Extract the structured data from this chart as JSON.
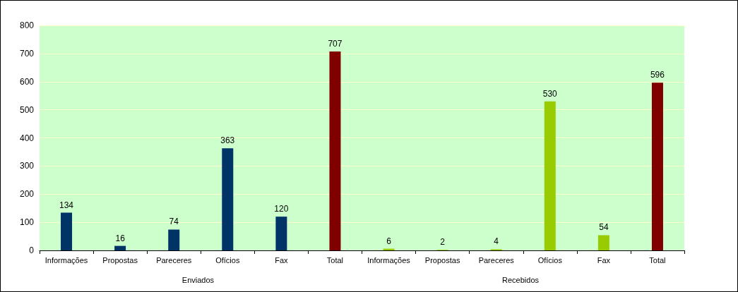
{
  "chart_data": {
    "type": "bar",
    "categories": [
      "Informações",
      "Propostas",
      "Pareceres",
      "Ofícios",
      "Fax",
      "Total",
      "Informações",
      "Propostas",
      "Pareceres",
      "Ofícios",
      "Fax",
      "Total"
    ],
    "values": [
      134,
      16,
      74,
      363,
      120,
      707,
      6,
      2,
      4,
      530,
      54,
      596
    ],
    "colors": [
      "#003366",
      "#003366",
      "#003366",
      "#003366",
      "#003366",
      "#800000",
      "#99cc00",
      "#99cc00",
      "#99cc00",
      "#99cc00",
      "#99cc00",
      "#800000"
    ],
    "ylim": [
      0,
      800
    ],
    "yticks": [
      0,
      100,
      200,
      300,
      400,
      500,
      600,
      700,
      800
    ],
    "grid": "y",
    "data_labels": true,
    "annotations": [
      "Enviados",
      "Recebidos"
    ]
  }
}
